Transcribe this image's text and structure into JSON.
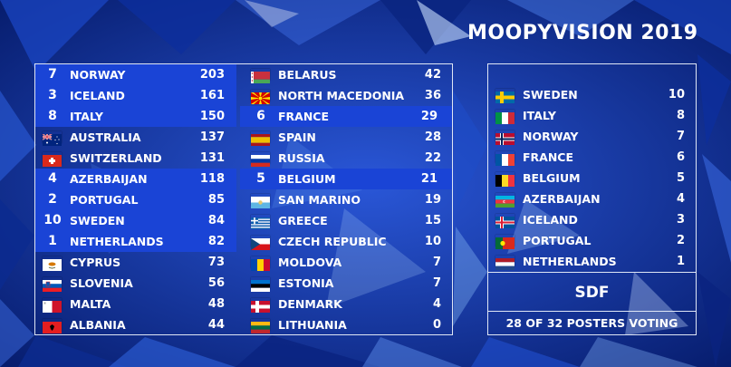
{
  "title": "MOOPYVISION 2019",
  "scoreboard": {
    "left_column": [
      {
        "points": "7",
        "country": "NORWAY",
        "score": "203",
        "flag": "norway-flag",
        "highlight": true
      },
      {
        "points": "3",
        "country": "ICELAND",
        "score": "161",
        "flag": "iceland-flag",
        "highlight": true
      },
      {
        "points": "8",
        "country": "ITALY",
        "score": "150",
        "flag": "italy-flag",
        "highlight": true
      },
      {
        "points": "",
        "country": "AUSTRALIA",
        "score": "137",
        "flag": "australia-flag",
        "highlight": false
      },
      {
        "points": "",
        "country": "SWITZERLAND",
        "score": "131",
        "flag": "switzerland-flag",
        "highlight": false
      },
      {
        "points": "4",
        "country": "AZERBAIJAN",
        "score": "118",
        "flag": "azerbaijan-flag",
        "highlight": true
      },
      {
        "points": "2",
        "country": "PORTUGAL",
        "score": "85",
        "flag": "portugal-flag",
        "highlight": true
      },
      {
        "points": "10",
        "country": "SWEDEN",
        "score": "84",
        "flag": "sweden-flag",
        "highlight": true
      },
      {
        "points": "1",
        "country": "NETHERLANDS",
        "score": "82",
        "flag": "netherlands-flag",
        "highlight": true
      },
      {
        "points": "",
        "country": "CYPRUS",
        "score": "73",
        "flag": "cyprus-flag",
        "highlight": false
      },
      {
        "points": "",
        "country": "SLOVENIA",
        "score": "56",
        "flag": "slovenia-flag",
        "highlight": false
      },
      {
        "points": "",
        "country": "MALTA",
        "score": "48",
        "flag": "malta-flag",
        "highlight": false
      },
      {
        "points": "",
        "country": "ALBANIA",
        "score": "44",
        "flag": "albania-flag",
        "highlight": false
      }
    ],
    "right_column": [
      {
        "points": "",
        "country": "BELARUS",
        "score": "42",
        "flag": "belarus-flag",
        "highlight": false
      },
      {
        "points": "",
        "country": "NORTH MACEDONIA",
        "score": "36",
        "flag": "north-macedonia-flag",
        "highlight": false
      },
      {
        "points": "6",
        "country": "FRANCE",
        "score": "29",
        "flag": "france-flag",
        "highlight": true
      },
      {
        "points": "",
        "country": "SPAIN",
        "score": "28",
        "flag": "spain-flag",
        "highlight": false
      },
      {
        "points": "",
        "country": "RUSSIA",
        "score": "22",
        "flag": "russia-flag",
        "highlight": false
      },
      {
        "points": "5",
        "country": "BELGIUM",
        "score": "21",
        "flag": "belgium-flag",
        "highlight": true
      },
      {
        "points": "",
        "country": "SAN MARINO",
        "score": "19",
        "flag": "san-marino-flag",
        "highlight": false
      },
      {
        "points": "",
        "country": "GREECE",
        "score": "15",
        "flag": "greece-flag",
        "highlight": false
      },
      {
        "points": "",
        "country": "CZECH REPUBLIC",
        "score": "10",
        "flag": "czech-republic-flag",
        "highlight": false
      },
      {
        "points": "",
        "country": "MOLDOVA",
        "score": "7",
        "flag": "moldova-flag",
        "highlight": false
      },
      {
        "points": "",
        "country": "ESTONIA",
        "score": "7",
        "flag": "estonia-flag",
        "highlight": false
      },
      {
        "points": "",
        "country": "DENMARK",
        "score": "4",
        "flag": "denmark-flag",
        "highlight": false
      },
      {
        "points": "",
        "country": "LITHUANIA",
        "score": "0",
        "flag": "lithuania-flag",
        "highlight": false
      }
    ]
  },
  "votes_panel": {
    "items": [
      {
        "country": "SWEDEN",
        "points": "10",
        "flag": "sweden-flag"
      },
      {
        "country": "ITALY",
        "points": "8",
        "flag": "italy-flag"
      },
      {
        "country": "NORWAY",
        "points": "7",
        "flag": "norway-flag"
      },
      {
        "country": "FRANCE",
        "points": "6",
        "flag": "france-flag"
      },
      {
        "country": "BELGIUM",
        "points": "5",
        "flag": "belgium-flag"
      },
      {
        "country": "AZERBAIJAN",
        "points": "4",
        "flag": "azerbaijan-flag"
      },
      {
        "country": "ICELAND",
        "points": "3",
        "flag": "iceland-flag"
      },
      {
        "country": "PORTUGAL",
        "points": "2",
        "flag": "portugal-flag"
      },
      {
        "country": "NETHERLANDS",
        "points": "1",
        "flag": "netherlands-flag"
      }
    ],
    "voter": "SDF",
    "progress": "28 OF 32 POSTERS VOTING"
  },
  "colors": {
    "highlight": "#1a44d6",
    "background": "#0a2a8a",
    "border": "#dfe6f5"
  }
}
